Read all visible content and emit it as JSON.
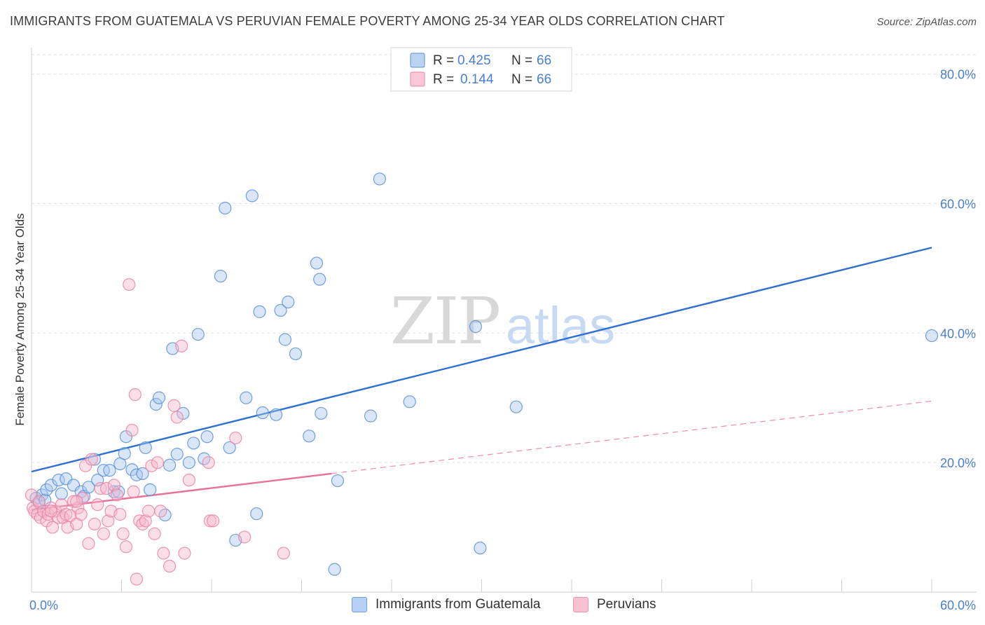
{
  "title": "IMMIGRANTS FROM GUATEMALA VS PERUVIAN FEMALE POVERTY AMONG 25-34 YEAR OLDS CORRELATION CHART",
  "source": "Source: ZipAtlas.com",
  "watermark": {
    "zip": "ZIP",
    "atlas": "atlas"
  },
  "colors": {
    "blue_fill": "#a9c8f0",
    "blue_stroke": "#5b8fd6",
    "blue_line": "#2e6fd0",
    "pink_fill": "#f7b8cb",
    "pink_stroke": "#e784a5",
    "pink_line": "#e8709a",
    "tick_label": "#4a7fcf",
    "grid": "#e2e2e2"
  },
  "legend_top": {
    "rows": [
      {
        "r_label": "R =",
        "r_value": "0.425",
        "n_label": "N =",
        "n_value": "66",
        "color": "blue"
      },
      {
        "r_label": "R =",
        "r_value": "0.144",
        "n_label": "N =",
        "n_value": "66",
        "color": "pink"
      }
    ]
  },
  "legend_bottom": [
    {
      "label": "Immigrants from Guatemala",
      "color": "blue"
    },
    {
      "label": "Peruvians",
      "color": "pink"
    }
  ],
  "chart_data": {
    "type": "scatter",
    "title": "IMMIGRANTS FROM GUATEMALA VS PERUVIAN FEMALE POVERTY AMONG 25-34 YEAR OLDS CORRELATION CHART",
    "xlabel": "",
    "ylabel": "Female Poverty Among 25-34 Year Olds",
    "xlim": [
      0,
      60
    ],
    "ylim": [
      0,
      83
    ],
    "x_tick_labels": [
      {
        "value": 0,
        "label": "0.0%"
      },
      {
        "value": 60,
        "label": "60.0%"
      }
    ],
    "x_minor_ticks": [
      0,
      6,
      12,
      18,
      24,
      30,
      36,
      42,
      48,
      54,
      60
    ],
    "y_ticks": [
      {
        "value": 20,
        "label": "20.0%"
      },
      {
        "value": 40,
        "label": "40.0%"
      },
      {
        "value": 60,
        "label": "60.0%"
      },
      {
        "value": 80,
        "label": "80.0%"
      }
    ],
    "grid": true,
    "legend_position": "top-center",
    "series": [
      {
        "name": "Immigrants from Guatemala",
        "color": "blue",
        "points": [
          [
            0.3,
            14.5
          ],
          [
            0.5,
            13.8
          ],
          [
            0.7,
            15.0
          ],
          [
            0.9,
            14.2
          ],
          [
            1.0,
            15.8
          ],
          [
            1.3,
            16.5
          ],
          [
            1.8,
            17.3
          ],
          [
            2.0,
            15.2
          ],
          [
            2.3,
            17.5
          ],
          [
            2.8,
            16.5
          ],
          [
            3.3,
            15.5
          ],
          [
            3.5,
            14.8
          ],
          [
            3.8,
            16.2
          ],
          [
            4.2,
            20.5
          ],
          [
            4.4,
            17.3
          ],
          [
            4.8,
            18.8
          ],
          [
            5.2,
            18.8
          ],
          [
            5.5,
            15.5
          ],
          [
            5.8,
            15.5
          ],
          [
            5.9,
            19.8
          ],
          [
            6.2,
            21.4
          ],
          [
            6.3,
            24.0
          ],
          [
            6.7,
            18.9
          ],
          [
            7.0,
            18.1
          ],
          [
            7.4,
            18.3
          ],
          [
            7.6,
            22.3
          ],
          [
            7.9,
            15.8
          ],
          [
            8.3,
            29.0
          ],
          [
            8.5,
            30.0
          ],
          [
            8.9,
            11.9
          ],
          [
            9.2,
            19.6
          ],
          [
            9.4,
            37.6
          ],
          [
            9.7,
            21.3
          ],
          [
            10.1,
            27.6
          ],
          [
            10.5,
            20.0
          ],
          [
            10.8,
            23.0
          ],
          [
            11.1,
            39.8
          ],
          [
            11.5,
            20.6
          ],
          [
            11.7,
            24.0
          ],
          [
            12.6,
            48.8
          ],
          [
            13.2,
            22.3
          ],
          [
            13.6,
            8.0
          ],
          [
            14.3,
            30.0
          ],
          [
            14.7,
            61.2
          ],
          [
            15.0,
            12.1
          ],
          [
            15.2,
            43.3
          ],
          [
            15.4,
            27.7
          ],
          [
            16.3,
            27.4
          ],
          [
            16.6,
            43.5
          ],
          [
            16.9,
            39.0
          ],
          [
            17.1,
            44.8
          ],
          [
            17.6,
            36.8
          ],
          [
            18.5,
            24.1
          ],
          [
            19.0,
            50.8
          ],
          [
            19.2,
            48.3
          ],
          [
            19.3,
            27.6
          ],
          [
            20.2,
            3.5
          ],
          [
            20.4,
            17.2
          ],
          [
            22.6,
            27.2
          ],
          [
            23.2,
            63.8
          ],
          [
            25.2,
            29.4
          ],
          [
            29.6,
            41.0
          ],
          [
            29.9,
            6.8
          ],
          [
            32.3,
            28.6
          ],
          [
            60.0,
            39.6
          ],
          [
            12.9,
            59.3
          ]
        ]
      },
      {
        "name": "Peruvians",
        "color": "pink",
        "points": [
          [
            0.0,
            15.0
          ],
          [
            0.1,
            13.0
          ],
          [
            0.2,
            12.5
          ],
          [
            0.4,
            12.0
          ],
          [
            0.5,
            14.0
          ],
          [
            0.6,
            11.5
          ],
          [
            0.8,
            12.5
          ],
          [
            1.0,
            11.0
          ],
          [
            1.1,
            12.0
          ],
          [
            1.3,
            13.0
          ],
          [
            1.4,
            10.0
          ],
          [
            1.6,
            12.5
          ],
          [
            1.8,
            11.5
          ],
          [
            2.0,
            13.5
          ],
          [
            2.1,
            11.5
          ],
          [
            2.3,
            12.0
          ],
          [
            2.4,
            10.0
          ],
          [
            2.6,
            11.8
          ],
          [
            2.8,
            14.0
          ],
          [
            3.0,
            10.5
          ],
          [
            3.1,
            13.0
          ],
          [
            3.3,
            12.0
          ],
          [
            3.4,
            14.5
          ],
          [
            3.6,
            19.5
          ],
          [
            3.8,
            7.5
          ],
          [
            4.0,
            20.5
          ],
          [
            4.2,
            10.5
          ],
          [
            4.4,
            13.5
          ],
          [
            4.6,
            16.0
          ],
          [
            4.8,
            9.0
          ],
          [
            5.0,
            16.0
          ],
          [
            5.1,
            11.0
          ],
          [
            5.3,
            12.5
          ],
          [
            5.5,
            16.5
          ],
          [
            5.7,
            15.0
          ],
          [
            5.9,
            12.0
          ],
          [
            6.1,
            9.0
          ],
          [
            6.3,
            7.0
          ],
          [
            6.5,
            47.5
          ],
          [
            6.7,
            25.0
          ],
          [
            6.8,
            15.5
          ],
          [
            6.9,
            30.5
          ],
          [
            7.0,
            2.0
          ],
          [
            7.2,
            11.0
          ],
          [
            7.4,
            10.5
          ],
          [
            7.6,
            11.0
          ],
          [
            7.8,
            12.5
          ],
          [
            8.0,
            19.5
          ],
          [
            8.2,
            9.0
          ],
          [
            8.4,
            20.0
          ],
          [
            8.6,
            12.5
          ],
          [
            8.8,
            6.0
          ],
          [
            9.2,
            4.0
          ],
          [
            9.5,
            28.8
          ],
          [
            9.7,
            27.0
          ],
          [
            10.0,
            38.0
          ],
          [
            10.2,
            6.0
          ],
          [
            10.5,
            17.3
          ],
          [
            11.8,
            20.0
          ],
          [
            11.9,
            11.0
          ],
          [
            12.1,
            11.0
          ],
          [
            13.6,
            23.8
          ],
          [
            14.2,
            8.5
          ],
          [
            16.8,
            6.0
          ],
          [
            1.3,
            12.5
          ],
          [
            3.0,
            14.0
          ]
        ]
      }
    ],
    "trend_lines": [
      {
        "series": "Immigrants from Guatemala",
        "from": [
          0,
          18.6
        ],
        "to": [
          60,
          53.2
        ],
        "style": "solid"
      },
      {
        "series": "Peruvians",
        "from": [
          0,
          12.7
        ],
        "to": [
          20,
          18.3
        ],
        "style": "solid"
      },
      {
        "series": "Peruvians",
        "from": [
          20,
          18.3
        ],
        "to": [
          60,
          29.5
        ],
        "style": "dashed"
      }
    ]
  }
}
